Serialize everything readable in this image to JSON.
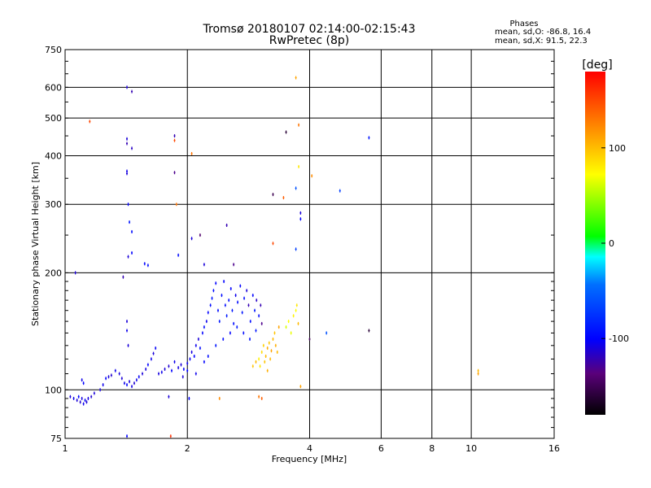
{
  "header": {
    "title": "Tromsø 20180107 02:14:00-02:15:43",
    "subtitle": "RwPretec (8p)",
    "stats_title": "Phases",
    "stats_o": "mean, sd,O:  -86.8, 16.4",
    "stats_x": "mean, sd,X:  91.5, 22.3"
  },
  "colorbar": {
    "label": "[deg]",
    "min": -180,
    "max": 180,
    "ticks": [
      {
        "value": 100,
        "label": "100"
      },
      {
        "value": 0,
        "label": "0"
      },
      {
        "value": -100,
        "label": "-100"
      }
    ]
  },
  "chart_data": {
    "type": "scatter",
    "title": "Tromsø 20180107 02:14:00-02:15:43",
    "subtitle": "RwPretec (8p)",
    "xlabel": "Frequency [MHz]",
    "ylabel": "Stationary phase Virtual Height [km]",
    "x_scale": "log",
    "y_scale": "log",
    "xlim": [
      1,
      16
    ],
    "ylim": [
      75,
      750
    ],
    "grid": true,
    "x_ticks": [
      {
        "value": 1,
        "label": "1"
      },
      {
        "value": 2,
        "label": "2"
      },
      {
        "value": 4,
        "label": "4"
      },
      {
        "value": 6,
        "label": "6"
      },
      {
        "value": 8,
        "label": "8"
      },
      {
        "value": 10,
        "label": "10"
      },
      {
        "value": 16,
        "label": "16"
      }
    ],
    "y_ticks": [
      {
        "value": 75,
        "label": "75"
      },
      {
        "value": 100,
        "label": "100"
      },
      {
        "value": 200,
        "label": "200"
      },
      {
        "value": 300,
        "label": "300"
      },
      {
        "value": 400,
        "label": "400"
      },
      {
        "value": 500,
        "label": "500"
      },
      {
        "value": 600,
        "label": "600"
      },
      {
        "value": 750,
        "label": "750"
      }
    ],
    "points": [
      {
        "x": 1.03,
        "y": 96,
        "phase": -110
      },
      {
        "x": 1.05,
        "y": 95,
        "phase": -105
      },
      {
        "x": 1.07,
        "y": 94,
        "phase": -110
      },
      {
        "x": 1.08,
        "y": 96,
        "phase": -100
      },
      {
        "x": 1.09,
        "y": 93,
        "phase": -112
      },
      {
        "x": 1.1,
        "y": 95,
        "phase": -108
      },
      {
        "x": 1.11,
        "y": 92,
        "phase": -105
      },
      {
        "x": 1.12,
        "y": 94,
        "phase": -102
      },
      {
        "x": 1.13,
        "y": 93,
        "phase": -110
      },
      {
        "x": 1.14,
        "y": 95,
        "phase": -108
      },
      {
        "x": 1.16,
        "y": 96,
        "phase": -112
      },
      {
        "x": 1.1,
        "y": 106,
        "phase": -105
      },
      {
        "x": 1.11,
        "y": 104,
        "phase": -100
      },
      {
        "x": 1.18,
        "y": 98,
        "phase": -110
      },
      {
        "x": 1.22,
        "y": 100,
        "phase": -108
      },
      {
        "x": 1.24,
        "y": 103,
        "phase": -105
      },
      {
        "x": 1.26,
        "y": 107,
        "phase": -100
      },
      {
        "x": 1.28,
        "y": 108,
        "phase": -110
      },
      {
        "x": 1.3,
        "y": 109,
        "phase": -112
      },
      {
        "x": 1.33,
        "y": 112,
        "phase": -105
      },
      {
        "x": 1.36,
        "y": 110,
        "phase": -108
      },
      {
        "x": 1.38,
        "y": 107,
        "phase": -110
      },
      {
        "x": 1.4,
        "y": 104,
        "phase": -105
      },
      {
        "x": 1.42,
        "y": 103,
        "phase": -100
      },
      {
        "x": 1.44,
        "y": 105,
        "phase": -110
      },
      {
        "x": 1.46,
        "y": 102,
        "phase": -108
      },
      {
        "x": 1.48,
        "y": 104,
        "phase": -112
      },
      {
        "x": 1.5,
        "y": 106,
        "phase": -105
      },
      {
        "x": 1.52,
        "y": 108,
        "phase": -102
      },
      {
        "x": 1.55,
        "y": 110,
        "phase": -110
      },
      {
        "x": 1.58,
        "y": 113,
        "phase": -108
      },
      {
        "x": 1.6,
        "y": 116,
        "phase": -100
      },
      {
        "x": 1.63,
        "y": 120,
        "phase": -105
      },
      {
        "x": 1.65,
        "y": 124,
        "phase": -110
      },
      {
        "x": 1.67,
        "y": 128,
        "phase": -102
      },
      {
        "x": 1.7,
        "y": 110,
        "phase": -108
      },
      {
        "x": 1.73,
        "y": 111,
        "phase": -105
      },
      {
        "x": 1.76,
        "y": 113,
        "phase": -110
      },
      {
        "x": 1.8,
        "y": 115,
        "phase": -112
      },
      {
        "x": 1.83,
        "y": 112,
        "phase": -100
      },
      {
        "x": 1.86,
        "y": 118,
        "phase": -105
      },
      {
        "x": 1.9,
        "y": 114,
        "phase": -108
      },
      {
        "x": 1.93,
        "y": 116,
        "phase": -110
      },
      {
        "x": 1.96,
        "y": 113,
        "phase": -100
      },
      {
        "x": 2.0,
        "y": 117,
        "phase": -105
      },
      {
        "x": 2.03,
        "y": 120,
        "phase": -102
      },
      {
        "x": 2.05,
        "y": 125,
        "phase": -108
      },
      {
        "x": 2.08,
        "y": 122,
        "phase": -100
      },
      {
        "x": 2.1,
        "y": 130,
        "phase": -105
      },
      {
        "x": 2.13,
        "y": 135,
        "phase": -110
      },
      {
        "x": 2.15,
        "y": 128,
        "phase": -95
      },
      {
        "x": 2.18,
        "y": 140,
        "phase": -100
      },
      {
        "x": 2.2,
        "y": 145,
        "phase": -95
      },
      {
        "x": 2.23,
        "y": 150,
        "phase": -105
      },
      {
        "x": 2.25,
        "y": 158,
        "phase": -100
      },
      {
        "x": 2.28,
        "y": 165,
        "phase": -95
      },
      {
        "x": 2.3,
        "y": 172,
        "phase": -90
      },
      {
        "x": 2.32,
        "y": 180,
        "phase": -95
      },
      {
        "x": 2.35,
        "y": 188,
        "phase": -100
      },
      {
        "x": 2.38,
        "y": 160,
        "phase": -95
      },
      {
        "x": 2.4,
        "y": 150,
        "phase": -90
      },
      {
        "x": 2.43,
        "y": 175,
        "phase": -95
      },
      {
        "x": 2.46,
        "y": 190,
        "phase": -100
      },
      {
        "x": 2.48,
        "y": 165,
        "phase": -95
      },
      {
        "x": 2.5,
        "y": 155,
        "phase": -88
      },
      {
        "x": 2.53,
        "y": 170,
        "phase": -95
      },
      {
        "x": 2.56,
        "y": 182,
        "phase": -100
      },
      {
        "x": 2.58,
        "y": 160,
        "phase": -90
      },
      {
        "x": 2.6,
        "y": 148,
        "phase": -95
      },
      {
        "x": 2.63,
        "y": 175,
        "phase": -105
      },
      {
        "x": 2.66,
        "y": 168,
        "phase": -95
      },
      {
        "x": 2.7,
        "y": 185,
        "phase": -100
      },
      {
        "x": 2.73,
        "y": 158,
        "phase": -90
      },
      {
        "x": 2.76,
        "y": 172,
        "phase": -95
      },
      {
        "x": 2.8,
        "y": 180,
        "phase": -110
      },
      {
        "x": 2.83,
        "y": 165,
        "phase": -120
      },
      {
        "x": 2.86,
        "y": 150,
        "phase": -95
      },
      {
        "x": 2.9,
        "y": 175,
        "phase": -100
      },
      {
        "x": 2.93,
        "y": 160,
        "phase": -90
      },
      {
        "x": 2.96,
        "y": 170,
        "phase": -115
      },
      {
        "x": 3.0,
        "y": 155,
        "phase": -95
      },
      {
        "x": 3.03,
        "y": 165,
        "phase": -120
      },
      {
        "x": 2.2,
        "y": 118,
        "phase": -100
      },
      {
        "x": 2.25,
        "y": 122,
        "phase": -95
      },
      {
        "x": 2.35,
        "y": 130,
        "phase": -90
      },
      {
        "x": 2.45,
        "y": 135,
        "phase": -95
      },
      {
        "x": 2.55,
        "y": 140,
        "phase": -100
      },
      {
        "x": 2.65,
        "y": 145,
        "phase": -88
      },
      {
        "x": 2.75,
        "y": 140,
        "phase": -95
      },
      {
        "x": 2.85,
        "y": 135,
        "phase": -92
      },
      {
        "x": 2.95,
        "y": 142,
        "phase": -90
      },
      {
        "x": 3.05,
        "y": 148,
        "phase": -130
      },
      {
        "x": 2.0,
        "y": 112,
        "phase": -100
      },
      {
        "x": 2.1,
        "y": 110,
        "phase": -105
      },
      {
        "x": 1.95,
        "y": 108,
        "phase": -110
      },
      {
        "x": 3.0,
        "y": 120,
        "phase": 75
      },
      {
        "x": 3.02,
        "y": 115,
        "phase": 80
      },
      {
        "x": 3.05,
        "y": 125,
        "phase": 85
      },
      {
        "x": 3.08,
        "y": 130,
        "phase": 90
      },
      {
        "x": 3.1,
        "y": 118,
        "phase": 95
      },
      {
        "x": 3.12,
        "y": 122,
        "phase": 100
      },
      {
        "x": 3.15,
        "y": 128,
        "phase": 105
      },
      {
        "x": 3.18,
        "y": 132,
        "phase": 95
      },
      {
        "x": 3.2,
        "y": 120,
        "phase": 100
      },
      {
        "x": 3.22,
        "y": 126,
        "phase": 110
      },
      {
        "x": 3.25,
        "y": 135,
        "phase": 100
      },
      {
        "x": 3.28,
        "y": 140,
        "phase": 95
      },
      {
        "x": 3.3,
        "y": 130,
        "phase": 105
      },
      {
        "x": 3.33,
        "y": 125,
        "phase": 100
      },
      {
        "x": 3.36,
        "y": 145,
        "phase": 110
      },
      {
        "x": 2.9,
        "y": 115,
        "phase": 95
      },
      {
        "x": 2.95,
        "y": 118,
        "phase": 100
      },
      {
        "x": 3.15,
        "y": 112,
        "phase": 105
      },
      {
        "x": 3.5,
        "y": 145,
        "phase": 60
      },
      {
        "x": 3.55,
        "y": 150,
        "phase": 70
      },
      {
        "x": 3.6,
        "y": 140,
        "phase": 65
      },
      {
        "x": 3.65,
        "y": 155,
        "phase": 75
      },
      {
        "x": 3.7,
        "y": 160,
        "phase": 70
      },
      {
        "x": 3.75,
        "y": 148,
        "phase": 100
      },
      {
        "x": 3.72,
        "y": 165,
        "phase": 80
      },
      {
        "x": 1.42,
        "y": 600,
        "phase": -110
      },
      {
        "x": 1.46,
        "y": 585,
        "phase": -120
      },
      {
        "x": 1.42,
        "y": 442,
        "phase": -110
      },
      {
        "x": 1.42,
        "y": 430,
        "phase": -120
      },
      {
        "x": 1.46,
        "y": 418,
        "phase": -115
      },
      {
        "x": 1.42,
        "y": 365,
        "phase": -105
      },
      {
        "x": 1.42,
        "y": 360,
        "phase": -110
      },
      {
        "x": 1.43,
        "y": 300,
        "phase": -100
      },
      {
        "x": 1.44,
        "y": 270,
        "phase": -90
      },
      {
        "x": 1.46,
        "y": 255,
        "phase": -95
      },
      {
        "x": 1.46,
        "y": 225,
        "phase": -100
      },
      {
        "x": 1.43,
        "y": 220,
        "phase": -110
      },
      {
        "x": 1.39,
        "y": 195,
        "phase": -120
      },
      {
        "x": 1.42,
        "y": 150,
        "phase": -110
      },
      {
        "x": 1.42,
        "y": 142,
        "phase": -105
      },
      {
        "x": 1.43,
        "y": 130,
        "phase": -110
      },
      {
        "x": 1.57,
        "y": 211,
        "phase": -100
      },
      {
        "x": 1.6,
        "y": 209,
        "phase": -95
      },
      {
        "x": 1.86,
        "y": 450,
        "phase": -120
      },
      {
        "x": 1.86,
        "y": 438,
        "phase": 150
      },
      {
        "x": 1.86,
        "y": 362,
        "phase": -130
      },
      {
        "x": 1.88,
        "y": 300,
        "phase": 130
      },
      {
        "x": 1.9,
        "y": 222,
        "phase": -95
      },
      {
        "x": 2.05,
        "y": 405,
        "phase": 130
      },
      {
        "x": 2.05,
        "y": 245,
        "phase": -110
      },
      {
        "x": 2.15,
        "y": 250,
        "phase": -140
      },
      {
        "x": 2.2,
        "y": 210,
        "phase": -110
      },
      {
        "x": 2.5,
        "y": 265,
        "phase": -120
      },
      {
        "x": 2.6,
        "y": 210,
        "phase": -130
      },
      {
        "x": 3.25,
        "y": 318,
        "phase": -150
      },
      {
        "x": 3.45,
        "y": 312,
        "phase": 140
      },
      {
        "x": 3.5,
        "y": 460,
        "phase": -160
      },
      {
        "x": 3.7,
        "y": 635,
        "phase": 110
      },
      {
        "x": 3.76,
        "y": 480,
        "phase": 130
      },
      {
        "x": 3.7,
        "y": 330,
        "phase": -60
      },
      {
        "x": 3.76,
        "y": 375,
        "phase": 80
      },
      {
        "x": 3.8,
        "y": 285,
        "phase": -110
      },
      {
        "x": 3.8,
        "y": 275,
        "phase": -100
      },
      {
        "x": 3.7,
        "y": 230,
        "phase": -70
      },
      {
        "x": 3.25,
        "y": 238,
        "phase": 150
      },
      {
        "x": 4.0,
        "y": 135,
        "phase": -150
      },
      {
        "x": 4.05,
        "y": 355,
        "phase": 120
      },
      {
        "x": 4.4,
        "y": 140,
        "phase": -60
      },
      {
        "x": 4.75,
        "y": 325,
        "phase": -70
      },
      {
        "x": 5.6,
        "y": 445,
        "phase": -90
      },
      {
        "x": 5.6,
        "y": 142,
        "phase": -160
      },
      {
        "x": 10.4,
        "y": 112,
        "phase": 100
      },
      {
        "x": 10.4,
        "y": 110,
        "phase": 110
      },
      {
        "x": 1.15,
        "y": 490,
        "phase": 150
      },
      {
        "x": 1.06,
        "y": 200,
        "phase": -110
      },
      {
        "x": 1.42,
        "y": 76,
        "phase": -100
      },
      {
        "x": 1.8,
        "y": 96,
        "phase": -110
      },
      {
        "x": 2.02,
        "y": 95,
        "phase": -100
      },
      {
        "x": 2.4,
        "y": 95,
        "phase": 120
      },
      {
        "x": 3.0,
        "y": 96,
        "phase": 130
      },
      {
        "x": 3.05,
        "y": 95,
        "phase": 140
      },
      {
        "x": 3.8,
        "y": 102,
        "phase": 110
      },
      {
        "x": 1.82,
        "y": 76,
        "phase": 160
      }
    ]
  }
}
